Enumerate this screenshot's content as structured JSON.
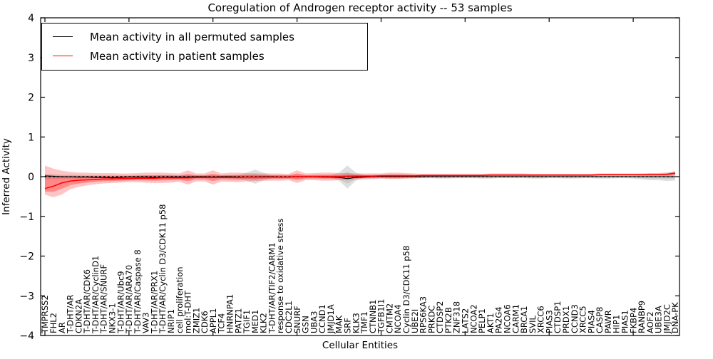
{
  "chart_data": {
    "type": "line",
    "title": "Coregulation of Androgen receptor activity -- 53 samples",
    "xlabel": "Cellular Entities",
    "ylabel": "Inferred Activity",
    "ylim": [
      -4,
      4
    ],
    "yticks": [
      4,
      3,
      2,
      1,
      0,
      -1,
      -2,
      -3,
      -4
    ],
    "grid": false,
    "zero_line_dotted": true,
    "legend_position": "upper left",
    "legend": [
      {
        "label": "Mean activity in all permuted samples",
        "color": "#000000"
      },
      {
        "label": "Mean activity in patient samples",
        "color": "#ff0000"
      }
    ],
    "colors": {
      "permuted_line": "#000000",
      "patient_line": "#ff0000",
      "permuted_band": "rgba(140,140,140,0.28)",
      "permuted_band_inner": "rgba(140,140,140,0.25)",
      "patient_band": "rgba(255,60,60,0.30)",
      "patient_band_inner": "rgba(255,0,0,0.30)"
    },
    "categories": [
      "TMPRSS2",
      "FHL2",
      "AR",
      "T-DHT/AR",
      "CDKN2A",
      "T-DHT/AR/CDK6",
      "T-DHT/AR/CyclinD1",
      "T-DHT/AR/SNURF",
      "NKX3-1",
      "T-DHT/AR/Ubc9",
      "T-DHT/AR/ARA70",
      "T-DHT/AR/Caspase 8",
      "VAV3",
      "T-DHT/AR/PRX1",
      "T-DHT/AR/Cyclin D3/CDK11 p58",
      "NRIP1",
      "cell proliferation",
      "mol:T-DHT",
      "ZMIZ1",
      "CDK6",
      "APPL1",
      "TCF4",
      "HNRNPA1",
      "PATZ1",
      "TGIF1",
      "MED1",
      "KLK2",
      "T-DHT/AR/TIF2/CARM1",
      "response to oxidative stress",
      "CDC2L1",
      "SNURF",
      "GSN",
      "UBA3",
      "CCND1",
      "JMJD1A",
      "MAK",
      "SRF",
      "KLK3",
      "TMF1",
      "CTNNB1",
      "TGFB1I1",
      "CMTM2",
      "NCOA4",
      "Cyclin D3/CDK11 p58",
      "UBE2I",
      "RPS6KA3",
      "PRKDC",
      "CTDSP2",
      "PTK2B",
      "ZNF318",
      "LATS2",
      "NCOA2",
      "PELP1",
      "AKT1",
      "PA2G4",
      "NCOA6",
      "CARM1",
      "BRCA1",
      "SVIL",
      "XRCC6",
      "PIAS3",
      "CTDSP1",
      "PRDX1",
      "CCND3",
      "XRCC5",
      "PIAS4",
      "CASP8",
      "PAWR",
      "HIP1",
      "PIAS1",
      "FKBP4",
      "RANBP9",
      "AOF2",
      "UBE3A",
      "JMJD2C",
      "DNA-PK"
    ],
    "series": [
      {
        "name": "Mean activity in all permuted samples",
        "values": [
          0.02,
          0.01,
          0.0,
          0.0,
          -0.01,
          -0.01,
          -0.02,
          -0.02,
          -0.03,
          -0.02,
          -0.01,
          -0.01,
          -0.01,
          -0.02,
          -0.02,
          -0.01,
          -0.01,
          -0.01,
          0.0,
          0.0,
          -0.01,
          0.0,
          0.0,
          -0.01,
          -0.01,
          -0.01,
          0.0,
          0.0,
          -0.01,
          -0.01,
          0.0,
          0.0,
          0.0,
          -0.01,
          -0.01,
          -0.02,
          -0.05,
          -0.02,
          -0.01,
          0.0,
          0.0,
          0.0,
          0.0,
          0.0,
          0.0,
          0.0,
          0.0,
          0.0,
          0.0,
          0.0,
          0.0,
          0.0,
          0.0,
          0.0,
          0.0,
          0.0,
          0.0,
          0.0,
          0.0,
          0.0,
          0.0,
          0.0,
          0.0,
          0.0,
          0.0,
          0.0,
          0.0,
          0.0,
          0.0,
          0.0,
          0.0,
          0.0,
          0.0,
          0.0,
          0.0,
          0.0
        ],
        "band_upper": [
          0.07,
          0.06,
          0.05,
          0.05,
          0.05,
          0.04,
          0.04,
          0.04,
          0.04,
          0.04,
          0.04,
          0.04,
          0.04,
          0.04,
          0.04,
          0.04,
          0.04,
          0.05,
          0.04,
          0.04,
          0.05,
          0.04,
          0.04,
          0.05,
          0.1,
          0.18,
          0.1,
          0.04,
          0.04,
          0.04,
          0.05,
          0.04,
          0.04,
          0.04,
          0.04,
          0.1,
          0.28,
          0.1,
          0.04,
          0.04,
          0.04,
          0.05,
          0.05,
          0.04,
          0.04,
          0.04,
          0.04,
          0.05,
          0.05,
          0.04,
          0.04,
          0.04,
          0.05,
          0.05,
          0.04,
          0.04,
          0.04,
          0.04,
          0.05,
          0.05,
          0.04,
          0.04,
          0.05,
          0.05,
          0.04,
          0.04,
          0.05,
          0.05,
          0.04,
          0.04,
          0.05,
          0.07,
          0.09,
          0.09,
          0.11,
          0.1
        ],
        "band_lower": [
          -0.07,
          -0.06,
          -0.05,
          -0.05,
          -0.05,
          -0.04,
          -0.04,
          -0.04,
          -0.04,
          -0.04,
          -0.04,
          -0.04,
          -0.04,
          -0.04,
          -0.04,
          -0.04,
          -0.04,
          -0.05,
          -0.04,
          -0.04,
          -0.05,
          -0.04,
          -0.04,
          -0.05,
          -0.1,
          -0.18,
          -0.1,
          -0.04,
          -0.04,
          -0.04,
          -0.05,
          -0.04,
          -0.04,
          -0.04,
          -0.04,
          -0.1,
          -0.3,
          -0.1,
          -0.04,
          -0.04,
          -0.04,
          -0.05,
          -0.05,
          -0.04,
          -0.04,
          -0.04,
          -0.04,
          -0.05,
          -0.05,
          -0.04,
          -0.04,
          -0.04,
          -0.05,
          -0.05,
          -0.04,
          -0.04,
          -0.04,
          -0.04,
          -0.05,
          -0.05,
          -0.04,
          -0.04,
          -0.05,
          -0.05,
          -0.04,
          -0.04,
          -0.05,
          -0.05,
          -0.04,
          -0.04,
          -0.05,
          -0.07,
          -0.09,
          -0.09,
          -0.11,
          -0.1
        ]
      },
      {
        "name": "Mean activity in patient samples",
        "values": [
          -0.3,
          -0.24,
          -0.16,
          -0.11,
          -0.09,
          -0.08,
          -0.07,
          -0.06,
          -0.06,
          -0.05,
          -0.05,
          -0.04,
          -0.04,
          -0.04,
          -0.03,
          -0.03,
          -0.03,
          -0.03,
          -0.02,
          -0.02,
          -0.02,
          -0.02,
          -0.02,
          -0.02,
          -0.01,
          -0.01,
          -0.01,
          -0.01,
          -0.01,
          -0.01,
          0.0,
          0.0,
          0.0,
          0.0,
          0.0,
          0.0,
          0.01,
          0.01,
          0.01,
          0.01,
          0.02,
          0.02,
          0.02,
          0.02,
          0.02,
          0.03,
          0.03,
          0.03,
          0.03,
          0.03,
          0.03,
          0.03,
          0.03,
          0.04,
          0.04,
          0.04,
          0.04,
          0.04,
          0.04,
          0.04,
          0.04,
          0.04,
          0.04,
          0.04,
          0.04,
          0.04,
          0.05,
          0.05,
          0.05,
          0.05,
          0.05,
          0.05,
          0.05,
          0.05,
          0.06,
          0.09
        ],
        "band_upper": [
          0.28,
          0.2,
          0.15,
          0.12,
          0.1,
          0.1,
          0.09,
          0.09,
          0.09,
          0.08,
          0.08,
          0.09,
          0.1,
          0.1,
          0.1,
          0.09,
          0.08,
          0.16,
          0.08,
          0.08,
          0.16,
          0.08,
          0.1,
          0.1,
          0.09,
          0.08,
          0.08,
          0.08,
          0.08,
          0.07,
          0.16,
          0.08,
          0.09,
          0.1,
          0.1,
          0.09,
          0.09,
          0.08,
          0.08,
          0.08,
          0.08,
          0.1,
          0.1,
          0.09,
          0.08,
          0.07,
          0.07,
          0.07,
          0.07,
          0.07,
          0.07,
          0.07,
          0.07,
          0.08,
          0.08,
          0.08,
          0.08,
          0.08,
          0.07,
          0.07,
          0.07,
          0.07,
          0.07,
          0.07,
          0.07,
          0.07,
          0.08,
          0.08,
          0.08,
          0.08,
          0.08,
          0.08,
          0.08,
          0.08,
          0.09,
          0.14
        ],
        "band_lower": [
          -0.45,
          -0.52,
          -0.45,
          -0.32,
          -0.26,
          -0.22,
          -0.19,
          -0.17,
          -0.16,
          -0.15,
          -0.14,
          -0.14,
          -0.15,
          -0.16,
          -0.16,
          -0.15,
          -0.13,
          -0.2,
          -0.12,
          -0.12,
          -0.2,
          -0.12,
          -0.13,
          -0.14,
          -0.12,
          -0.11,
          -0.1,
          -0.1,
          -0.1,
          -0.09,
          -0.16,
          -0.09,
          -0.09,
          -0.1,
          -0.1,
          -0.09,
          -0.08,
          -0.07,
          -0.07,
          -0.06,
          -0.05,
          -0.06,
          -0.06,
          -0.05,
          -0.04,
          -0.03,
          -0.02,
          -0.02,
          -0.02,
          -0.01,
          -0.01,
          -0.01,
          -0.01,
          0.0,
          0.0,
          0.0,
          0.0,
          0.0,
          0.0,
          0.01,
          0.01,
          0.01,
          0.01,
          0.01,
          0.01,
          0.01,
          0.02,
          0.02,
          0.02,
          0.02,
          0.02,
          0.02,
          0.02,
          0.02,
          0.02,
          0.03
        ]
      }
    ]
  }
}
